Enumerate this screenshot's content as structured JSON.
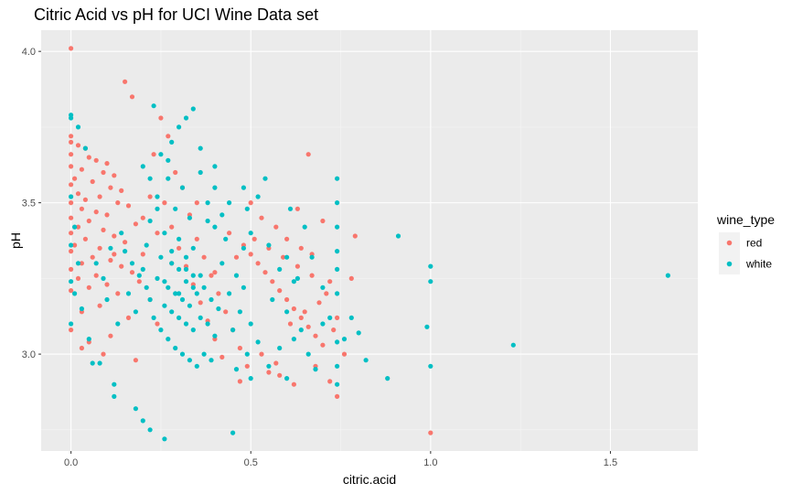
{
  "chart_data": {
    "type": "scatter",
    "title": "Citric Acid vs pH for UCI Wine Data set",
    "xlabel": "citric.acid",
    "ylabel": "pH",
    "xlim": [
      -0.083,
      1.743
    ],
    "ylim": [
      2.68,
      4.07
    ],
    "x_ticks": [
      0.0,
      0.5,
      1.0,
      1.5
    ],
    "x_tick_labels": [
      "0.0",
      "0.5",
      "1.0",
      "1.5"
    ],
    "y_ticks": [
      3.0,
      3.5,
      4.0
    ],
    "y_tick_labels": [
      "3.0",
      "3.5",
      "4.0"
    ],
    "grid": true,
    "legend": {
      "title": "wine_type",
      "position": "right"
    },
    "series": [
      {
        "name": "red",
        "color": "#f8766d",
        "points": [
          [
            0.0,
            4.01
          ],
          [
            0.15,
            3.9
          ],
          [
            0.17,
            3.85
          ],
          [
            0.0,
            3.72
          ],
          [
            0.0,
            3.7
          ],
          [
            0.02,
            3.69
          ],
          [
            0.04,
            3.68
          ],
          [
            0.0,
            3.66
          ],
          [
            0.05,
            3.65
          ],
          [
            0.07,
            3.64
          ],
          [
            0.1,
            3.63
          ],
          [
            0.0,
            3.62
          ],
          [
            0.03,
            3.61
          ],
          [
            0.09,
            3.6
          ],
          [
            0.12,
            3.59
          ],
          [
            0.01,
            3.58
          ],
          [
            0.06,
            3.57
          ],
          [
            0.0,
            3.56
          ],
          [
            0.11,
            3.55
          ],
          [
            0.14,
            3.54
          ],
          [
            0.02,
            3.53
          ],
          [
            0.08,
            3.52
          ],
          [
            0.04,
            3.51
          ],
          [
            0.0,
            3.5
          ],
          [
            0.13,
            3.5
          ],
          [
            0.16,
            3.49
          ],
          [
            0.03,
            3.48
          ],
          [
            0.07,
            3.47
          ],
          [
            0.1,
            3.46
          ],
          [
            0.0,
            3.45
          ],
          [
            0.05,
            3.44
          ],
          [
            0.18,
            3.43
          ],
          [
            0.02,
            3.42
          ],
          [
            0.09,
            3.41
          ],
          [
            0.0,
            3.4
          ],
          [
            0.12,
            3.39
          ],
          [
            0.04,
            3.38
          ],
          [
            0.15,
            3.37
          ],
          [
            0.01,
            3.36
          ],
          [
            0.08,
            3.35
          ],
          [
            0.0,
            3.34
          ],
          [
            0.2,
            3.33
          ],
          [
            0.06,
            3.32
          ],
          [
            0.11,
            3.31
          ],
          [
            0.03,
            3.3
          ],
          [
            0.14,
            3.29
          ],
          [
            0.0,
            3.28
          ],
          [
            0.17,
            3.27
          ],
          [
            0.07,
            3.26
          ],
          [
            0.02,
            3.25
          ],
          [
            0.19,
            3.24
          ],
          [
            0.1,
            3.23
          ],
          [
            0.05,
            3.22
          ],
          [
            0.0,
            3.21
          ],
          [
            0.13,
            3.2
          ],
          [
            0.22,
            3.18
          ],
          [
            0.08,
            3.16
          ],
          [
            0.03,
            3.14
          ],
          [
            0.16,
            3.12
          ],
          [
            0.24,
            3.1
          ],
          [
            0.0,
            3.08
          ],
          [
            0.11,
            3.06
          ],
          [
            0.05,
            3.04
          ],
          [
            0.03,
            3.02
          ],
          [
            0.09,
            3.0
          ],
          [
            0.18,
            2.98
          ],
          [
            0.25,
            3.78
          ],
          [
            0.27,
            3.72
          ],
          [
            0.23,
            3.66
          ],
          [
            0.29,
            3.6
          ],
          [
            0.31,
            3.55
          ],
          [
            0.26,
            3.5
          ],
          [
            0.33,
            3.46
          ],
          [
            0.28,
            3.42
          ],
          [
            0.35,
            3.38
          ],
          [
            0.3,
            3.35
          ],
          [
            0.37,
            3.32
          ],
          [
            0.32,
            3.29
          ],
          [
            0.39,
            3.26
          ],
          [
            0.34,
            3.23
          ],
          [
            0.41,
            3.2
          ],
          [
            0.36,
            3.17
          ],
          [
            0.43,
            3.14
          ],
          [
            0.38,
            3.11
          ],
          [
            0.45,
            3.08
          ],
          [
            0.4,
            3.05
          ],
          [
            0.47,
            3.02
          ],
          [
            0.42,
            2.99
          ],
          [
            0.49,
            2.96
          ],
          [
            0.44,
            3.4
          ],
          [
            0.48,
            3.36
          ],
          [
            0.5,
            3.33
          ],
          [
            0.52,
            3.3
          ],
          [
            0.54,
            3.27
          ],
          [
            0.56,
            3.24
          ],
          [
            0.58,
            3.21
          ],
          [
            0.6,
            3.18
          ],
          [
            0.62,
            3.15
          ],
          [
            0.64,
            3.12
          ],
          [
            0.66,
            3.09
          ],
          [
            0.68,
            3.06
          ],
          [
            0.7,
            3.03
          ],
          [
            0.51,
            3.38
          ],
          [
            0.55,
            3.35
          ],
          [
            0.59,
            3.32
          ],
          [
            0.63,
            3.29
          ],
          [
            0.67,
            3.26
          ],
          [
            0.71,
            3.2
          ],
          [
            0.53,
            3.0
          ],
          [
            0.57,
            2.97
          ],
          [
            0.61,
            3.1
          ],
          [
            0.65,
            3.14
          ],
          [
            0.69,
            3.17
          ],
          [
            0.73,
            3.08
          ],
          [
            0.5,
            3.5
          ],
          [
            0.53,
            3.45
          ],
          [
            0.57,
            3.42
          ],
          [
            0.6,
            3.38
          ],
          [
            0.64,
            3.35
          ],
          [
            0.67,
            3.33
          ],
          [
            0.66,
            3.66
          ],
          [
            0.63,
            3.48
          ],
          [
            0.7,
            3.44
          ],
          [
            0.72,
            3.24
          ],
          [
            0.74,
            3.12
          ],
          [
            0.76,
            3.0
          ],
          [
            0.68,
            2.96
          ],
          [
            0.62,
            2.9
          ],
          [
            0.55,
            2.94
          ],
          [
            0.47,
            2.91
          ],
          [
            0.58,
            2.93
          ],
          [
            0.74,
            2.86
          ],
          [
            0.79,
            3.39
          ],
          [
            0.78,
            3.25
          ],
          [
            0.72,
            2.91
          ],
          [
            1.0,
            2.74
          ],
          [
            0.12,
            3.33
          ],
          [
            0.2,
            3.45
          ],
          [
            0.22,
            3.52
          ],
          [
            0.24,
            3.4
          ],
          [
            0.28,
            3.3
          ],
          [
            0.46,
            3.32
          ],
          [
            0.4,
            3.27
          ],
          [
            0.35,
            3.5
          ]
        ]
      },
      {
        "name": "white",
        "color": "#00bfc4",
        "points": [
          [
            0.0,
            3.79
          ],
          [
            0.0,
            3.78
          ],
          [
            0.02,
            3.75
          ],
          [
            0.04,
            3.68
          ],
          [
            0.0,
            3.52
          ],
          [
            0.01,
            3.42
          ],
          [
            0.0,
            3.36
          ],
          [
            0.02,
            3.3
          ],
          [
            0.0,
            3.24
          ],
          [
            0.01,
            3.2
          ],
          [
            0.03,
            3.15
          ],
          [
            0.0,
            3.1
          ],
          [
            0.05,
            3.05
          ],
          [
            0.06,
            2.97
          ],
          [
            0.08,
            2.97
          ],
          [
            0.12,
            2.9
          ],
          [
            0.12,
            2.86
          ],
          [
            0.18,
            2.82
          ],
          [
            0.2,
            2.78
          ],
          [
            0.22,
            2.75
          ],
          [
            0.26,
            2.72
          ],
          [
            0.45,
            2.74
          ],
          [
            0.23,
            3.82
          ],
          [
            0.3,
            3.75
          ],
          [
            0.34,
            3.81
          ],
          [
            0.28,
            3.7
          ],
          [
            0.32,
            3.78
          ],
          [
            0.25,
            3.66
          ],
          [
            0.2,
            3.62
          ],
          [
            0.27,
            3.58
          ],
          [
            0.36,
            3.6
          ],
          [
            0.31,
            3.55
          ],
          [
            0.24,
            3.52
          ],
          [
            0.29,
            3.48
          ],
          [
            0.33,
            3.45
          ],
          [
            0.38,
            3.5
          ],
          [
            0.22,
            3.44
          ],
          [
            0.26,
            3.4
          ],
          [
            0.3,
            3.38
          ],
          [
            0.34,
            3.35
          ],
          [
            0.4,
            3.42
          ],
          [
            0.21,
            3.36
          ],
          [
            0.25,
            3.32
          ],
          [
            0.28,
            3.3
          ],
          [
            0.32,
            3.28
          ],
          [
            0.36,
            3.26
          ],
          [
            0.42,
            3.3
          ],
          [
            0.2,
            3.28
          ],
          [
            0.24,
            3.25
          ],
          [
            0.27,
            3.22
          ],
          [
            0.29,
            3.2
          ],
          [
            0.31,
            3.18
          ],
          [
            0.33,
            3.16
          ],
          [
            0.35,
            3.2
          ],
          [
            0.37,
            3.22
          ],
          [
            0.39,
            3.18
          ],
          [
            0.41,
            3.15
          ],
          [
            0.44,
            3.2
          ],
          [
            0.26,
            3.16
          ],
          [
            0.28,
            3.14
          ],
          [
            0.3,
            3.12
          ],
          [
            0.32,
            3.1
          ],
          [
            0.34,
            3.08
          ],
          [
            0.36,
            3.12
          ],
          [
            0.38,
            3.1
          ],
          [
            0.4,
            3.06
          ],
          [
            0.27,
            3.05
          ],
          [
            0.29,
            3.02
          ],
          [
            0.31,
            3.0
          ],
          [
            0.33,
            2.98
          ],
          [
            0.35,
            2.96
          ],
          [
            0.37,
            3.0
          ],
          [
            0.39,
            2.98
          ],
          [
            0.25,
            3.08
          ],
          [
            0.23,
            3.12
          ],
          [
            0.22,
            3.18
          ],
          [
            0.21,
            3.22
          ],
          [
            0.19,
            3.26
          ],
          [
            0.17,
            3.3
          ],
          [
            0.15,
            3.34
          ],
          [
            0.14,
            3.4
          ],
          [
            0.16,
            3.2
          ],
          [
            0.18,
            3.14
          ],
          [
            0.13,
            3.1
          ],
          [
            0.1,
            3.18
          ],
          [
            0.09,
            3.25
          ],
          [
            0.07,
            3.3
          ],
          [
            0.11,
            3.35
          ],
          [
            0.3,
            3.28
          ],
          [
            0.32,
            3.32
          ],
          [
            0.34,
            3.26
          ],
          [
            0.28,
            3.34
          ],
          [
            0.26,
            3.24
          ],
          [
            0.3,
            3.2
          ],
          [
            0.32,
            3.24
          ],
          [
            0.34,
            3.22
          ],
          [
            0.46,
            3.26
          ],
          [
            0.48,
            3.22
          ],
          [
            0.47,
            3.14
          ],
          [
            0.45,
            3.08
          ],
          [
            0.5,
            3.1
          ],
          [
            0.52,
            3.04
          ],
          [
            0.49,
            3.0
          ],
          [
            0.46,
            2.95
          ],
          [
            0.5,
            2.92
          ],
          [
            0.48,
            3.35
          ],
          [
            0.5,
            3.4
          ],
          [
            0.49,
            3.48
          ],
          [
            0.48,
            3.55
          ],
          [
            0.44,
            3.5
          ],
          [
            0.42,
            3.46
          ],
          [
            0.52,
            3.52
          ],
          [
            0.55,
            3.36
          ],
          [
            0.6,
            3.32
          ],
          [
            0.58,
            3.28
          ],
          [
            0.62,
            3.24
          ],
          [
            0.56,
            3.18
          ],
          [
            0.6,
            3.14
          ],
          [
            0.64,
            3.08
          ],
          [
            0.58,
            3.02
          ],
          [
            0.62,
            3.05
          ],
          [
            0.66,
            3.0
          ],
          [
            0.68,
            2.95
          ],
          [
            0.55,
            2.96
          ],
          [
            0.6,
            2.92
          ],
          [
            0.7,
            3.1
          ],
          [
            0.72,
            3.12
          ],
          [
            0.74,
            3.2
          ],
          [
            0.74,
            3.28
          ],
          [
            0.74,
            3.34
          ],
          [
            0.74,
            3.42
          ],
          [
            0.74,
            3.5
          ],
          [
            0.74,
            3.58
          ],
          [
            0.74,
            3.04
          ],
          [
            0.74,
            2.96
          ],
          [
            0.74,
            2.9
          ],
          [
            0.8,
            3.07
          ],
          [
            0.82,
            2.98
          ],
          [
            0.88,
            2.92
          ],
          [
            0.91,
            3.39
          ],
          [
            1.0,
            3.29
          ],
          [
            1.0,
            3.24
          ],
          [
            0.99,
            3.09
          ],
          [
            1.0,
            2.96
          ],
          [
            1.23,
            3.03
          ],
          [
            1.66,
            3.26
          ],
          [
            0.63,
            3.25
          ],
          [
            0.67,
            3.32
          ],
          [
            0.7,
            3.22
          ],
          [
            0.78,
            3.12
          ],
          [
            0.76,
            3.05
          ],
          [
            0.65,
            3.42
          ],
          [
            0.61,
            3.48
          ],
          [
            0.54,
            3.58
          ],
          [
            0.4,
            3.62
          ],
          [
            0.36,
            3.68
          ],
          [
            0.4,
            3.55
          ],
          [
            0.24,
            3.48
          ],
          [
            0.22,
            3.58
          ],
          [
            0.27,
            3.64
          ],
          [
            0.43,
            3.38
          ],
          [
            0.38,
            3.44
          ]
        ]
      }
    ]
  }
}
